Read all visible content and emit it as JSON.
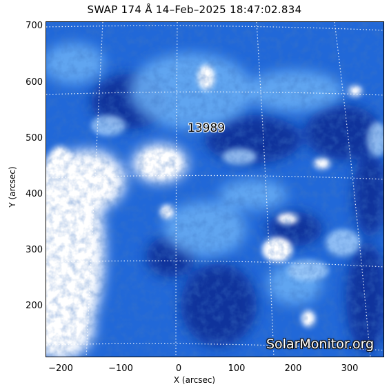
{
  "title": "SWAP 174 Å 14–Feb–2025 18:47:02.834",
  "region_label": "13989",
  "watermark": "SolarMonitor.org",
  "x_axis": {
    "label": "X (arcsec)",
    "ticks": [
      "−200",
      "−100",
      "0",
      "100",
      "200",
      "300"
    ]
  },
  "y_axis": {
    "label": "Y (arcsec)",
    "ticks": [
      "700",
      "600",
      "500",
      "400",
      "300",
      "200"
    ]
  },
  "colors": {
    "deep": "#0a2a8f",
    "mid": "#1f63d6",
    "light": "#5aa4f2",
    "bright": "#ffffff"
  }
}
